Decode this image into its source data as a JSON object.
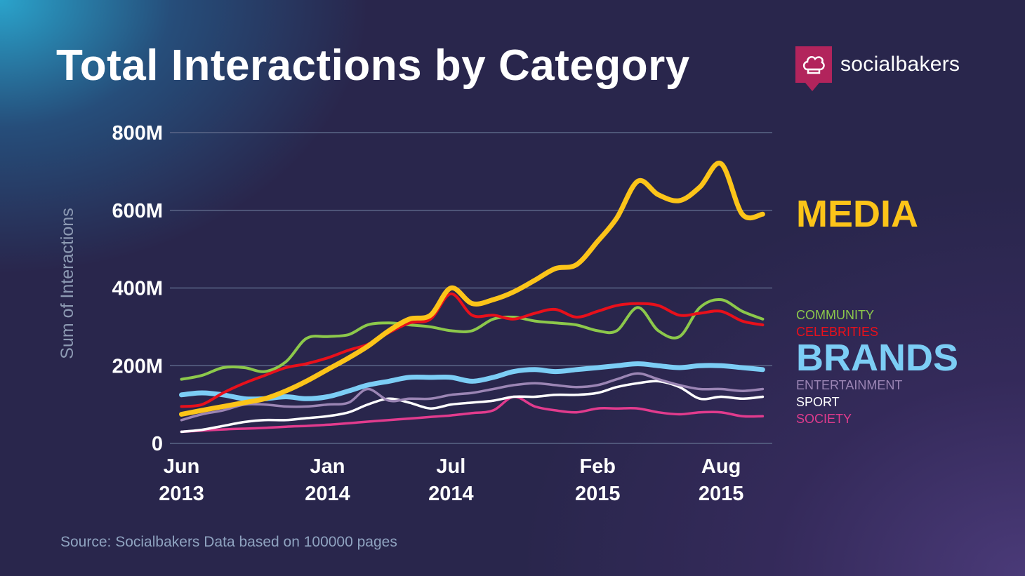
{
  "header": {
    "title": "Total Interactions by Category",
    "logo_text": "socialbakers",
    "logo_icon": "chef-hat-icon"
  },
  "footer": {
    "source": "Source: Socialbakers Data based on 100000 pages"
  },
  "colors": {
    "MEDIA": "#fcc419",
    "COMMUNITY": "#8cc84b",
    "CELEBRITIES": "#e8101b",
    "BRANDS": "#7ccdf5",
    "ENTERTAINMENT": "#9b85b4",
    "SPORT": "#ffffff",
    "SOCIETY": "#e13b8d",
    "grid": "#5b6687",
    "brand": "#b2245c"
  },
  "chart_data": {
    "type": "line",
    "title": "Total Interactions by Category",
    "xlabel": "",
    "ylabel": "Sum of Interactions",
    "ylim": [
      0,
      800
    ],
    "y_unit": "M",
    "yticks": [
      {
        "value": 0,
        "label": "0"
      },
      {
        "value": 200,
        "label": "200M"
      },
      {
        "value": 400,
        "label": "400M"
      },
      {
        "value": 600,
        "label": "600M"
      },
      {
        "value": 800,
        "label": "800M"
      }
    ],
    "xlim": [
      "2013-05-15",
      "2015-10-15"
    ],
    "xticks": [
      {
        "date": "2013-06-01",
        "month": "Jun",
        "year": "2013"
      },
      {
        "date": "2014-01-01",
        "month": "Jan",
        "year": "2014"
      },
      {
        "date": "2014-07-01",
        "month": "Jul",
        "year": "2014"
      },
      {
        "date": "2015-02-01",
        "month": "Feb",
        "year": "2015"
      },
      {
        "date": "2015-08-01",
        "month": "Aug",
        "year": "2015"
      }
    ],
    "grid": true,
    "legend": "right",
    "x": [
      "2013-06-01",
      "2013-07-01",
      "2013-08-01",
      "2013-09-01",
      "2013-10-01",
      "2013-11-01",
      "2013-12-01",
      "2014-01-01",
      "2014-02-01",
      "2014-03-01",
      "2014-04-01",
      "2014-05-01",
      "2014-06-01",
      "2014-07-01",
      "2014-08-01",
      "2014-09-01",
      "2014-10-01",
      "2014-11-01",
      "2014-12-01",
      "2015-01-01",
      "2015-02-01",
      "2015-03-01",
      "2015-04-01",
      "2015-05-01",
      "2015-06-01",
      "2015-07-01",
      "2015-08-01",
      "2015-09-01",
      "2015-10-01"
    ],
    "series": [
      {
        "name": "MEDIA",
        "values": [
          75,
          85,
          95,
          105,
          115,
          135,
          160,
          190,
          220,
          250,
          290,
          320,
          330,
          400,
          360,
          370,
          390,
          420,
          450,
          460,
          520,
          580,
          675,
          640,
          625,
          660,
          720,
          590,
          590
        ]
      },
      {
        "name": "COMMUNITY",
        "values": [
          165,
          175,
          195,
          195,
          185,
          210,
          270,
          275,
          280,
          305,
          310,
          305,
          300,
          290,
          290,
          320,
          325,
          315,
          310,
          305,
          290,
          290,
          350,
          290,
          275,
          350,
          370,
          340,
          320
        ]
      },
      {
        "name": "CELEBRITIES",
        "values": [
          95,
          100,
          130,
          155,
          175,
          195,
          205,
          220,
          240,
          255,
          285,
          310,
          320,
          385,
          330,
          330,
          320,
          335,
          345,
          325,
          340,
          355,
          360,
          355,
          330,
          335,
          340,
          315,
          305
        ]
      },
      {
        "name": "BRANDS",
        "values": [
          125,
          130,
          125,
          115,
          115,
          120,
          115,
          120,
          135,
          150,
          160,
          170,
          170,
          170,
          160,
          170,
          185,
          190,
          185,
          190,
          195,
          200,
          205,
          200,
          195,
          200,
          200,
          195,
          190
        ]
      },
      {
        "name": "ENTERTAINMENT",
        "values": [
          60,
          75,
          85,
          100,
          100,
          95,
          95,
          100,
          105,
          140,
          110,
          115,
          115,
          125,
          130,
          140,
          150,
          155,
          150,
          145,
          150,
          165,
          180,
          165,
          150,
          140,
          140,
          135,
          140
        ]
      },
      {
        "name": "SPORT",
        "values": [
          30,
          35,
          45,
          55,
          60,
          60,
          65,
          70,
          80,
          100,
          115,
          105,
          90,
          100,
          105,
          110,
          120,
          120,
          125,
          125,
          130,
          145,
          155,
          160,
          145,
          115,
          120,
          115,
          120
        ]
      },
      {
        "name": "SOCIETY",
        "values": [
          30,
          33,
          36,
          38,
          40,
          43,
          45,
          48,
          52,
          56,
          60,
          64,
          68,
          72,
          78,
          85,
          120,
          95,
          85,
          80,
          90,
          90,
          90,
          80,
          75,
          80,
          80,
          70,
          70
        ]
      }
    ]
  }
}
